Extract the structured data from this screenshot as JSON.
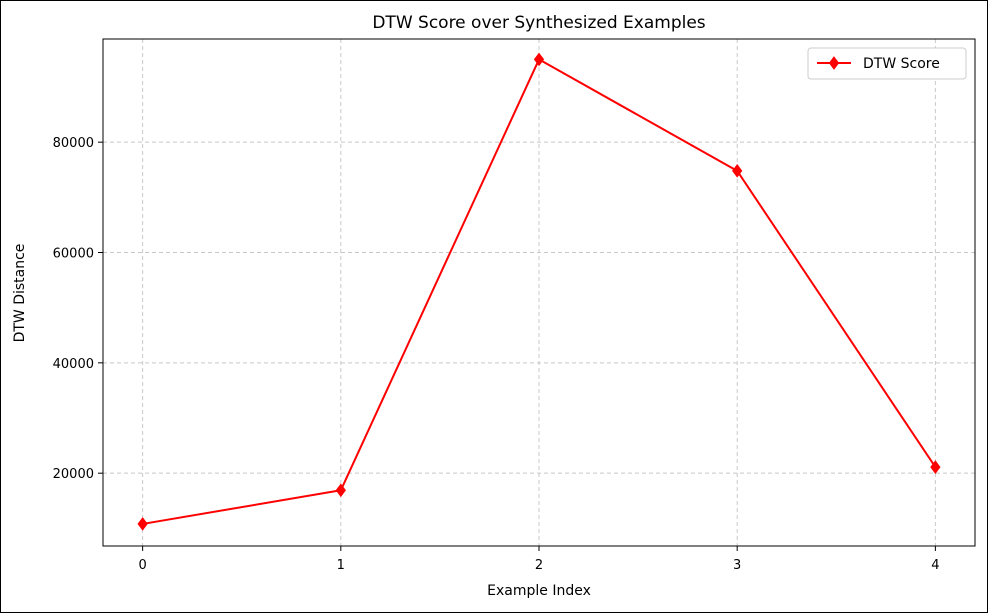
{
  "colors": {
    "series": "#ff0000",
    "axis": "#000000",
    "grid": "#c8c8c8",
    "legend_border": "#cccccc",
    "frame": "#000000"
  },
  "chart_data": {
    "type": "line",
    "title": "DTW Score over Synthesized Examples",
    "xlabel": "Example Index",
    "ylabel": "DTW Distance",
    "x": [
      0,
      1,
      2,
      3,
      4
    ],
    "xticks": [
      0,
      1,
      2,
      3,
      4
    ],
    "yticks": [
      20000,
      40000,
      60000,
      80000
    ],
    "xlim": [
      -0.2,
      4.2
    ],
    "ylim": [
      6800,
      98700
    ],
    "grid": true,
    "legend_position": "top-right",
    "marker": "diamond",
    "series": [
      {
        "name": "DTW Score",
        "values": [
          10800,
          16900,
          95000,
          74800,
          21100
        ]
      }
    ]
  }
}
